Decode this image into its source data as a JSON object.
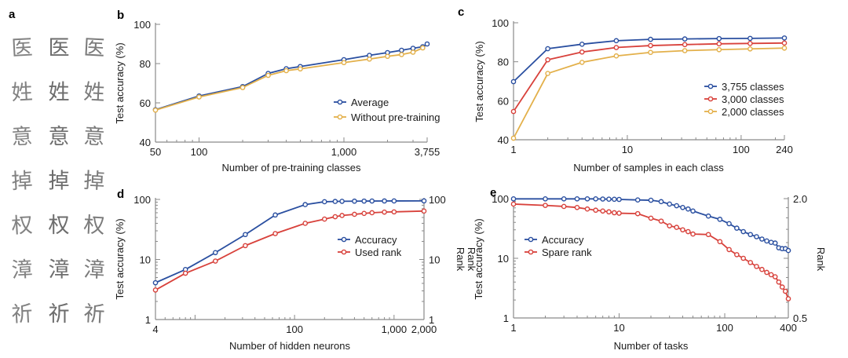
{
  "panel_a": {
    "label": "a",
    "rows": [
      [
        "医",
        "医",
        "医"
      ],
      [
        "姓",
        "姓",
        "姓"
      ],
      [
        "意",
        "意",
        "意"
      ],
      [
        "掉",
        "掉",
        "掉"
      ],
      [
        "权",
        "权",
        "权"
      ],
      [
        "漳",
        "漳",
        "漳"
      ],
      [
        "祈",
        "祈",
        "祈"
      ]
    ]
  },
  "colors": {
    "blue": "#2a4fa0",
    "red": "#d8413b",
    "yellow": "#e3b04a",
    "axis": "#8a8a8a"
  },
  "chart_data": [
    {
      "id": "b",
      "label": "b",
      "type": "line",
      "xscale": "log",
      "yscale": "linear",
      "xlabel": "Number of pre-training classes",
      "ylabel": "Test accuracy (%)",
      "xlim": [
        50,
        3755
      ],
      "ylim": [
        40,
        100
      ],
      "xticks": [
        {
          "v": 50,
          "t": "50"
        },
        {
          "v": 100,
          "t": "100"
        },
        {
          "v": 1000,
          "t": "1,000"
        },
        {
          "v": 3755,
          "t": "3,755"
        }
      ],
      "yticks": [
        {
          "v": 40,
          "t": "40"
        },
        {
          "v": 60,
          "t": "60"
        },
        {
          "v": 80,
          "t": "80"
        },
        {
          "v": 100,
          "t": "100"
        }
      ],
      "legend": "center-right",
      "series": [
        {
          "name": "Average",
          "color": "blue",
          "x": [
            50,
            100,
            200,
            300,
            400,
            500,
            1000,
            1500,
            2000,
            2500,
            3000,
            3500,
            3755
          ],
          "y": [
            56.5,
            63.5,
            68.3,
            75.0,
            77.4,
            78.5,
            82.0,
            84.2,
            85.6,
            86.8,
            87.8,
            88.6,
            90.0
          ]
        },
        {
          "name": "Without pre-training",
          "color": "yellow",
          "x": [
            50,
            100,
            200,
            300,
            400,
            500,
            1000,
            1500,
            2000,
            2500,
            3000,
            3500
          ],
          "y": [
            56.3,
            63.0,
            67.8,
            74.0,
            76.4,
            77.3,
            80.5,
            82.3,
            83.7,
            84.6,
            85.8,
            88.0
          ]
        }
      ]
    },
    {
      "id": "c",
      "label": "c",
      "type": "line",
      "xscale": "log",
      "yscale": "linear",
      "xlabel": "Number of samples in each class",
      "ylabel": "Test accuracy (%)",
      "xlim": [
        1,
        240
      ],
      "ylim": [
        40,
        100
      ],
      "xticks": [
        {
          "v": 1,
          "t": "1"
        },
        {
          "v": 10,
          "t": "10"
        },
        {
          "v": 100,
          "t": "100"
        },
        {
          "v": 240,
          "t": "240"
        }
      ],
      "yticks": [
        {
          "v": 40,
          "t": "40"
        },
        {
          "v": 60,
          "t": "60"
        },
        {
          "v": 80,
          "t": "80"
        },
        {
          "v": 100,
          "t": "100"
        }
      ],
      "legend": "center-right",
      "series": [
        {
          "name": "3,755 classes",
          "color": "blue",
          "x": [
            1,
            2,
            4,
            8,
            16,
            32,
            64,
            120,
            240
          ],
          "y": [
            69.8,
            86.7,
            89.0,
            90.8,
            91.5,
            91.7,
            91.9,
            92.0,
            92.2
          ]
        },
        {
          "name": "3,000 classes",
          "color": "red",
          "x": [
            1,
            2,
            4,
            8,
            16,
            32,
            64,
            120,
            240
          ],
          "y": [
            54.5,
            81.0,
            85.0,
            87.3,
            88.3,
            88.8,
            89.2,
            89.4,
            89.6
          ]
        },
        {
          "name": "2,000 classes",
          "color": "yellow",
          "x": [
            1,
            2,
            4,
            8,
            16,
            32,
            64,
            120,
            240
          ],
          "y": [
            40.8,
            74.0,
            79.7,
            83.0,
            84.8,
            85.7,
            86.2,
            86.6,
            87.0
          ]
        }
      ]
    },
    {
      "id": "d",
      "label": "d",
      "type": "line",
      "xscale": "log",
      "yscale": "log",
      "xlabel": "Number of hidden neurons",
      "ylabel": "Test accuracy (%)",
      "ylabel_right": "Rank",
      "xlim": [
        4,
        2000
      ],
      "ylim": [
        1,
        100
      ],
      "xticks": [
        {
          "v": 4,
          "t": "4"
        },
        {
          "v": 100,
          "t": "100"
        },
        {
          "v": 1000,
          "t": "1,000"
        },
        {
          "v": 2000,
          "t": "2,000"
        }
      ],
      "yticks": [
        {
          "v": 1,
          "t": "1"
        },
        {
          "v": 10,
          "t": "10"
        },
        {
          "v": 100,
          "t": "100"
        }
      ],
      "yticks_right": [
        {
          "v": 1,
          "t": "1"
        },
        {
          "v": 10,
          "t": "10"
        },
        {
          "v": 100,
          "t": "100"
        }
      ],
      "legend": "center-right",
      "series": [
        {
          "name": "Accuracy",
          "color": "blue",
          "x": [
            4,
            8,
            16,
            32,
            64,
            128,
            200,
            256,
            300,
            400,
            500,
            600,
            800,
            1000,
            2000
          ],
          "y": [
            4.1,
            6.8,
            13.0,
            26.0,
            55.0,
            82.0,
            91.5,
            92.5,
            93.0,
            93.5,
            93.8,
            94.0,
            94.2,
            94.3,
            94.5
          ]
        },
        {
          "name": "Used rank",
          "color": "red",
          "x": [
            4,
            8,
            16,
            32,
            64,
            128,
            200,
            256,
            300,
            400,
            500,
            600,
            800,
            1000,
            2000
          ],
          "y": [
            3.1,
            5.9,
            9.4,
            17.0,
            27.0,
            40.0,
            47.0,
            51.5,
            54.0,
            56.5,
            58.5,
            60.0,
            61.5,
            62.0,
            64.0
          ]
        }
      ]
    },
    {
      "id": "e",
      "label": "e",
      "type": "line",
      "xscale": "log",
      "yscale": "log",
      "xlabel": "Number of tasks",
      "ylabel": "Test accuracy (%)",
      "ylabel_right": "Rank",
      "ylabel_left_outer": "Rank",
      "xlim": [
        1,
        400
      ],
      "ylim": [
        1,
        100
      ],
      "ylim_right": [
        0.5,
        2.0
      ],
      "xticks": [
        {
          "v": 1,
          "t": "1"
        },
        {
          "v": 10,
          "t": "10"
        },
        {
          "v": 100,
          "t": "100"
        },
        {
          "v": 400,
          "t": "400"
        }
      ],
      "yticks": [
        {
          "v": 1,
          "t": "1"
        },
        {
          "v": 10,
          "t": "10"
        },
        {
          "v": 100,
          "t": "100"
        }
      ],
      "yticks_right": [
        {
          "v": 0.5,
          "t": "0.5"
        },
        {
          "v": 2.0,
          "t": "2.0"
        }
      ],
      "legend": "center-left",
      "series": [
        {
          "name": "Accuracy",
          "color": "blue",
          "x": [
            1,
            2,
            3,
            4,
            5,
            6,
            7,
            8,
            9,
            10,
            15,
            20,
            25,
            30,
            35,
            40,
            45,
            50,
            70,
            90,
            110,
            130,
            150,
            175,
            200,
            225,
            250,
            275,
            300,
            325,
            350,
            375,
            400
          ],
          "y": [
            99,
            99,
            99,
            99,
            99,
            99,
            98.5,
            98,
            97.5,
            97,
            95,
            94,
            89,
            81,
            76,
            71,
            67,
            62,
            51,
            45,
            38,
            32,
            28,
            25,
            23,
            21,
            19.5,
            18.5,
            18,
            15,
            14.5,
            14.5,
            13.5
          ]
        },
        {
          "name": "Spare rank",
          "color": "red",
          "x": [
            1,
            2,
            3,
            4,
            5,
            6,
            7,
            8,
            9,
            10,
            15,
            20,
            25,
            30,
            35,
            40,
            45,
            50,
            70,
            90,
            110,
            130,
            150,
            175,
            200,
            225,
            250,
            275,
            300,
            325,
            350,
            375,
            400
          ],
          "y": [
            81,
            77,
            74,
            71,
            67,
            64,
            62,
            60,
            58,
            57,
            56,
            47,
            42,
            35,
            33,
            30,
            28,
            25.5,
            25,
            19,
            14,
            11.5,
            10,
            8.5,
            7.3,
            6.5,
            5.8,
            5.3,
            4.9,
            4.0,
            3.3,
            2.8,
            2.1
          ]
        }
      ]
    }
  ]
}
